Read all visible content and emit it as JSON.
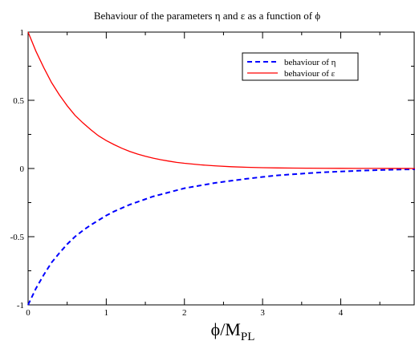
{
  "chart_data": {
    "type": "line",
    "title": "Behaviour of the parameters η and ε as a function of ϕ",
    "xlabel": {
      "main": "ϕ/M",
      "subscript": "PL"
    },
    "ylabel": "",
    "xlim": [
      0,
      4.95
    ],
    "ylim": [
      -1,
      1
    ],
    "xticks": [
      0,
      1,
      2,
      3,
      4
    ],
    "yticks": [
      -1,
      -0.5,
      0,
      0.5,
      1
    ],
    "xtick_labels": [
      "0",
      "1",
      "2",
      "3",
      "4"
    ],
    "ytick_labels": [
      "-1",
      "-0.5",
      "0",
      "0.5",
      "1"
    ],
    "grid": false,
    "legend_position": "top-right",
    "series": [
      {
        "name": "behaviour of η",
        "color": "#0000ff",
        "dash": "dashed",
        "x": [
          0,
          0.1,
          0.2,
          0.3,
          0.4,
          0.5,
          0.6,
          0.7,
          0.8,
          0.9,
          1.0,
          1.1,
          1.2,
          1.3,
          1.4,
          1.5,
          1.6,
          1.7,
          1.8,
          1.9,
          2.0,
          2.2,
          2.4,
          2.6,
          2.8,
          3.0,
          3.2,
          3.4,
          3.6,
          3.8,
          4.0,
          4.2,
          4.4,
          4.6,
          4.8,
          4.95
        ],
        "y": [
          -1.0,
          -0.88,
          -0.78,
          -0.69,
          -0.62,
          -0.555,
          -0.5,
          -0.455,
          -0.415,
          -0.38,
          -0.345,
          -0.315,
          -0.29,
          -0.265,
          -0.245,
          -0.225,
          -0.205,
          -0.19,
          -0.175,
          -0.16,
          -0.145,
          -0.125,
          -0.105,
          -0.09,
          -0.075,
          -0.062,
          -0.05,
          -0.042,
          -0.034,
          -0.027,
          -0.022,
          -0.017,
          -0.013,
          -0.01,
          -0.007,
          -0.006
        ]
      },
      {
        "name": "behaviour of  ε",
        "color": "#ff0000",
        "dash": "solid",
        "x": [
          0,
          0.1,
          0.2,
          0.3,
          0.4,
          0.5,
          0.6,
          0.7,
          0.8,
          0.9,
          1.0,
          1.1,
          1.2,
          1.3,
          1.4,
          1.5,
          1.6,
          1.7,
          1.8,
          1.9,
          2.0,
          2.2,
          2.4,
          2.6,
          2.8,
          3.0,
          3.2,
          3.4,
          3.6,
          3.8,
          4.0,
          4.2,
          4.4,
          4.6,
          4.8,
          4.95
        ],
        "y": [
          1.0,
          0.86,
          0.74,
          0.63,
          0.54,
          0.46,
          0.39,
          0.335,
          0.285,
          0.24,
          0.205,
          0.175,
          0.148,
          0.125,
          0.106,
          0.09,
          0.076,
          0.064,
          0.054,
          0.045,
          0.038,
          0.027,
          0.019,
          0.013,
          0.009,
          0.006,
          0.004,
          0.003,
          0.002,
          0.0015,
          0.001,
          0.0008,
          0.0006,
          0.0004,
          0.0003,
          0.0002
        ]
      }
    ]
  }
}
